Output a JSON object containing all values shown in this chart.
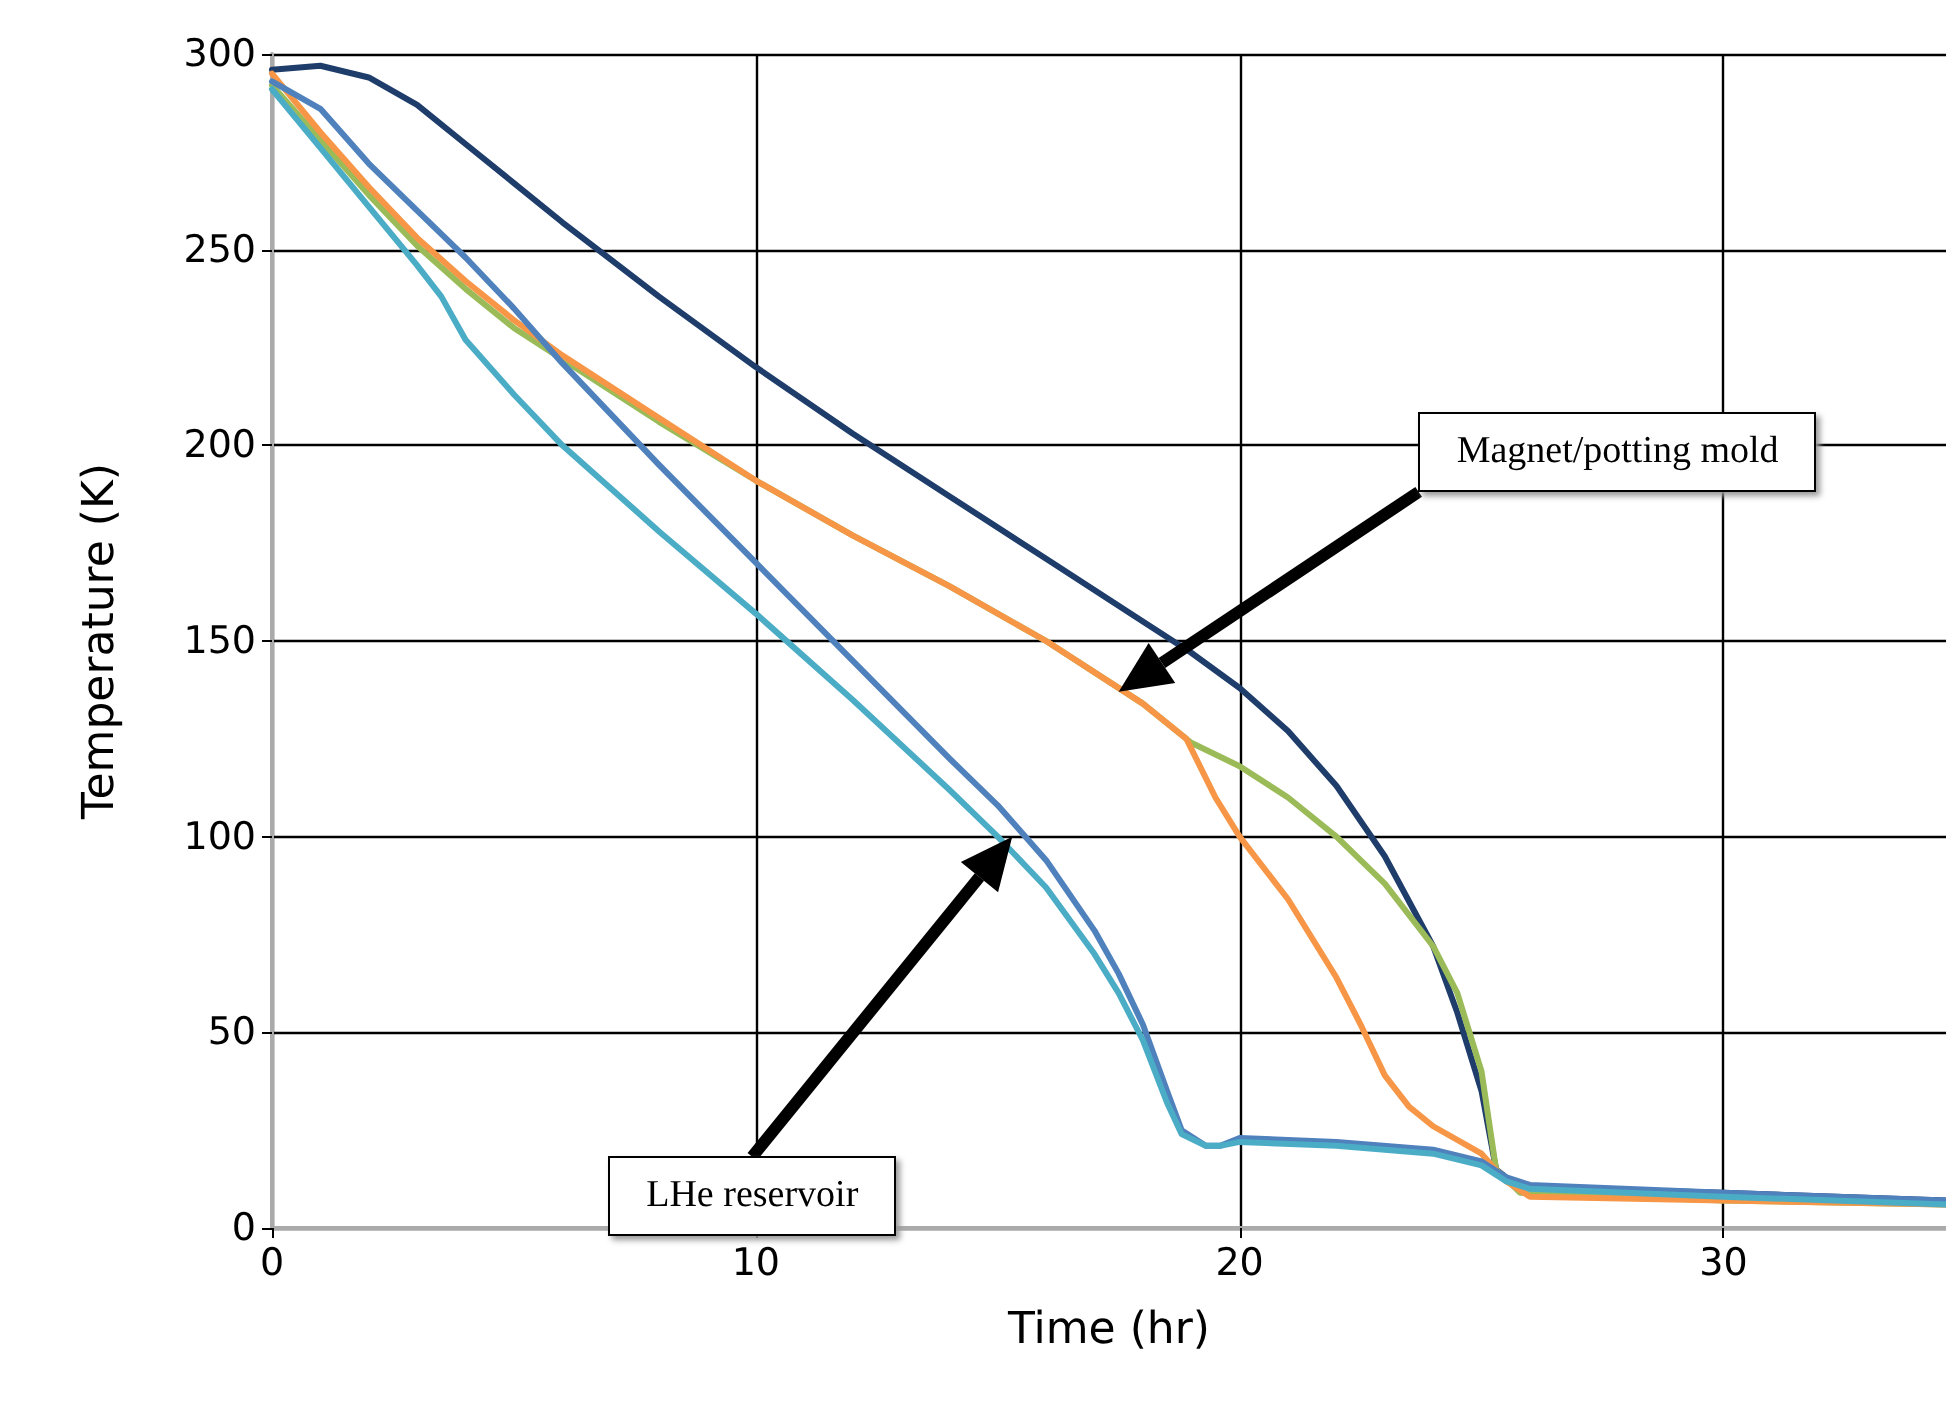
{
  "chart_data": {
    "type": "line",
    "xlabel": "Time (hr)",
    "ylabel": "Temperature (K)",
    "xlim": [
      0,
      34.6
    ],
    "xticks": [
      0,
      10,
      20,
      30
    ],
    "ylim": [
      0,
      300
    ],
    "yticks": [
      0,
      50,
      100,
      150,
      200,
      250,
      300
    ],
    "grid": true,
    "marker": "none",
    "line_style": "solid",
    "series": [
      {
        "color": "#1f3d6b",
        "x": [
          0,
          1,
          2,
          3,
          4,
          5,
          6,
          8,
          10,
          12,
          14,
          16,
          18,
          19,
          20,
          21,
          22,
          23,
          24,
          24.5,
          25,
          25.3,
          25.7,
          27,
          30,
          34.6
        ],
        "values": [
          296,
          297,
          294,
          287,
          277,
          267,
          257,
          238,
          220,
          203,
          187,
          171,
          155,
          147,
          138,
          127,
          113,
          95,
          72,
          55,
          35,
          15,
          11,
          10,
          9,
          7
        ]
      },
      {
        "color": "#9bbb59",
        "x": [
          0,
          1,
          2,
          3,
          4,
          5,
          6,
          8,
          10,
          12,
          14,
          16,
          18,
          19,
          20,
          21,
          22,
          23,
          24,
          24.5,
          25,
          25.3,
          25.8,
          30,
          34.6
        ],
        "values": [
          292,
          278,
          264,
          251,
          240,
          230,
          222,
          206,
          191,
          177,
          164,
          150,
          134,
          124,
          118,
          110,
          100,
          88,
          72,
          60,
          40,
          15,
          9,
          7,
          6
        ]
      },
      {
        "color": "#f79646",
        "x": [
          0,
          1,
          2,
          3,
          4,
          5,
          6,
          8,
          10,
          12,
          14,
          16,
          18,
          18.9,
          19.5,
          20,
          21,
          22,
          22.5,
          23,
          23.5,
          24,
          25,
          25.5,
          26,
          30,
          34.6
        ],
        "values": [
          295,
          280,
          266,
          253,
          242,
          232,
          223,
          207,
          191,
          177,
          164,
          150,
          134,
          125,
          110,
          100,
          84,
          64,
          52,
          39,
          31,
          26,
          19,
          12,
          8,
          7,
          6
        ]
      },
      {
        "color": "#4f81bd",
        "x": [
          0,
          1,
          2,
          3,
          4,
          5,
          6,
          8,
          10,
          12,
          14,
          15,
          16,
          17,
          17.5,
          18,
          18.5,
          18.8,
          19.3,
          19.6,
          20,
          22,
          24,
          25,
          25.5,
          26,
          30,
          34.6
        ],
        "values": [
          293,
          286,
          272,
          260,
          248,
          235,
          221,
          195,
          170,
          145,
          120,
          108,
          94,
          76,
          65,
          52,
          35,
          25,
          21,
          21,
          23,
          22,
          20,
          17,
          13,
          11,
          9,
          7
        ]
      },
      {
        "color": "#4bacc6",
        "x": [
          0,
          1,
          2,
          3,
          3.5,
          4,
          5,
          6,
          8,
          10,
          12,
          14,
          15,
          16,
          17,
          17.5,
          18,
          18.5,
          18.8,
          19.3,
          19.6,
          20,
          22,
          24,
          25,
          25.5,
          26,
          30,
          34.6
        ],
        "values": [
          291,
          276,
          261,
          246,
          238,
          227,
          213,
          200,
          178,
          157,
          135,
          112,
          100,
          87,
          70,
          60,
          48,
          32,
          24,
          21,
          21,
          22,
          21,
          19,
          16,
          12,
          10,
          8,
          6
        ]
      }
    ],
    "annotations": [
      "Magnet/potting mold",
      "LHe reservoir"
    ]
  }
}
